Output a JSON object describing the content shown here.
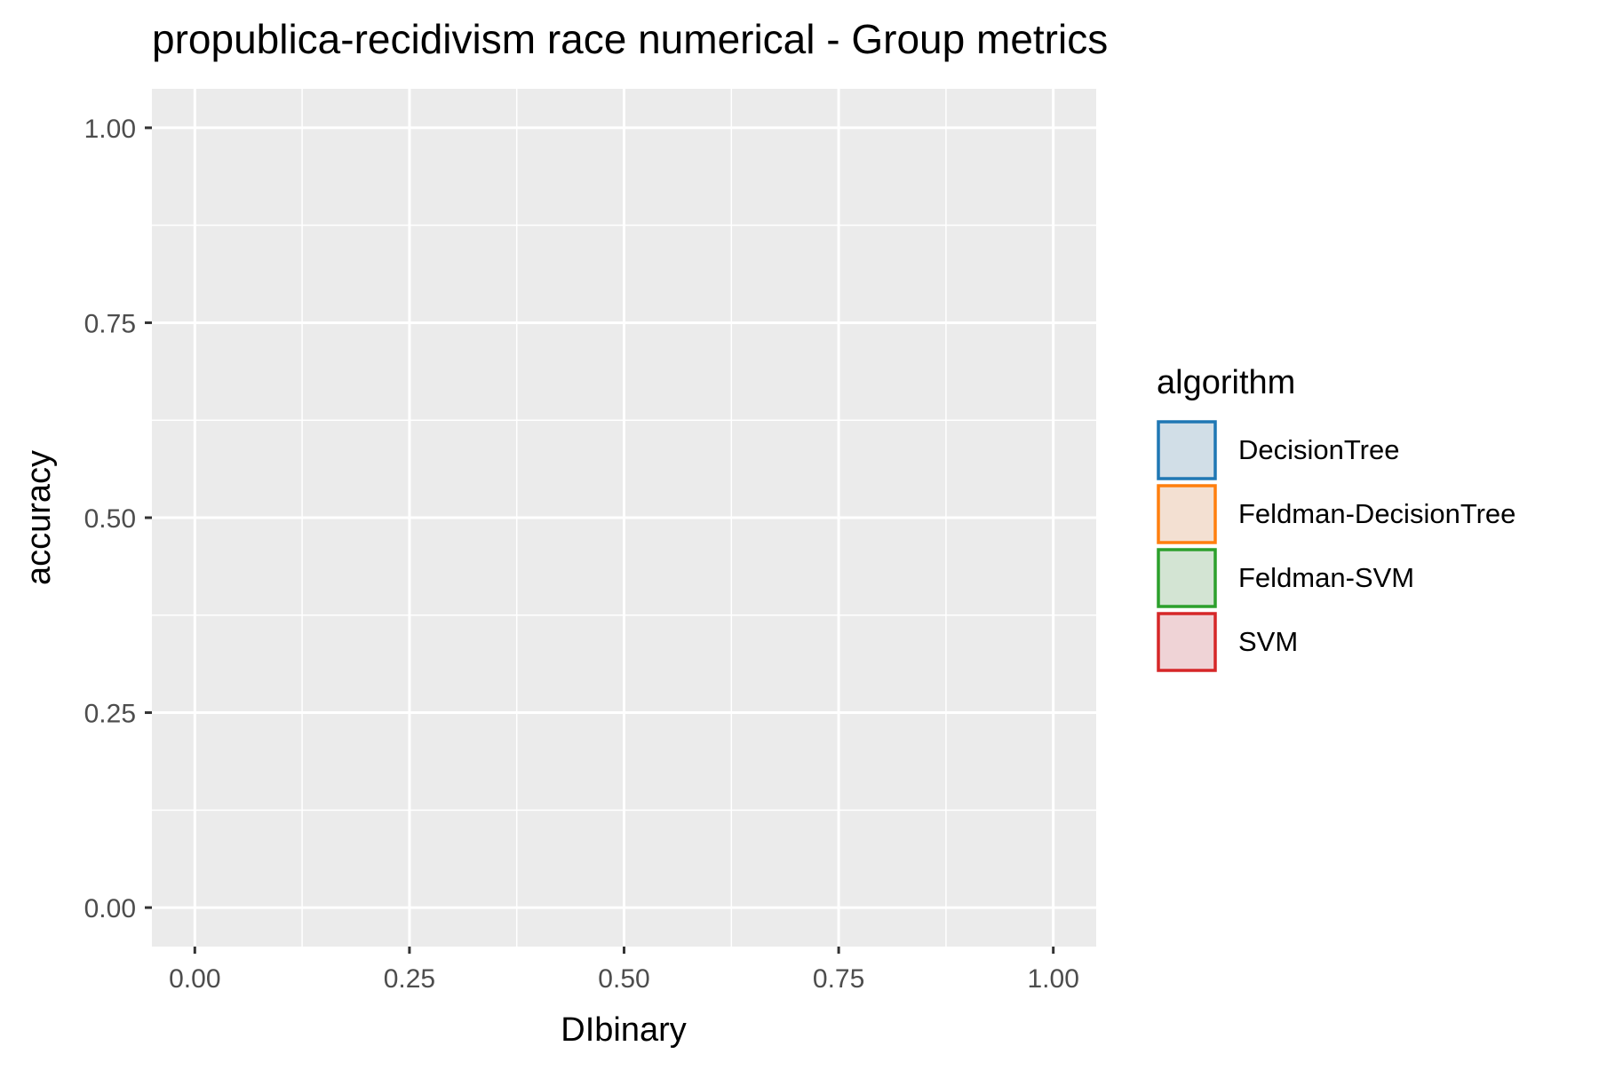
{
  "chart_data": {
    "type": "scatter",
    "title": "propublica-recidivism race numerical - Group metrics",
    "xlabel": "DIbinary",
    "ylabel": "accuracy",
    "xlim": [
      -0.05,
      1.05
    ],
    "ylim": [
      -0.05,
      1.05
    ],
    "x_ticks": [
      0,
      0.25,
      0.5,
      0.75,
      1
    ],
    "x_tick_labels": [
      "0.00",
      "0.25",
      "0.50",
      "0.75",
      "1.00"
    ],
    "y_ticks": [
      0,
      0.25,
      0.5,
      0.75,
      1
    ],
    "y_tick_labels": [
      "0.00",
      "0.25",
      "0.50",
      "0.75",
      "1.00"
    ],
    "grid": true,
    "legend_title": "algorithm",
    "legend_position": "right",
    "series": [
      {
        "name": "DecisionTree",
        "color": "#1f77b4",
        "fill": "#d1dee7",
        "points": []
      },
      {
        "name": "Feldman-DecisionTree",
        "color": "#ff7f0e",
        "fill": "#f3e0d2",
        "points": []
      },
      {
        "name": "Feldman-SVM",
        "color": "#2ca02c",
        "fill": "#d3e4d3",
        "points": []
      },
      {
        "name": "SVM",
        "color": "#d62728",
        "fill": "#efd3d6",
        "points": []
      }
    ]
  }
}
